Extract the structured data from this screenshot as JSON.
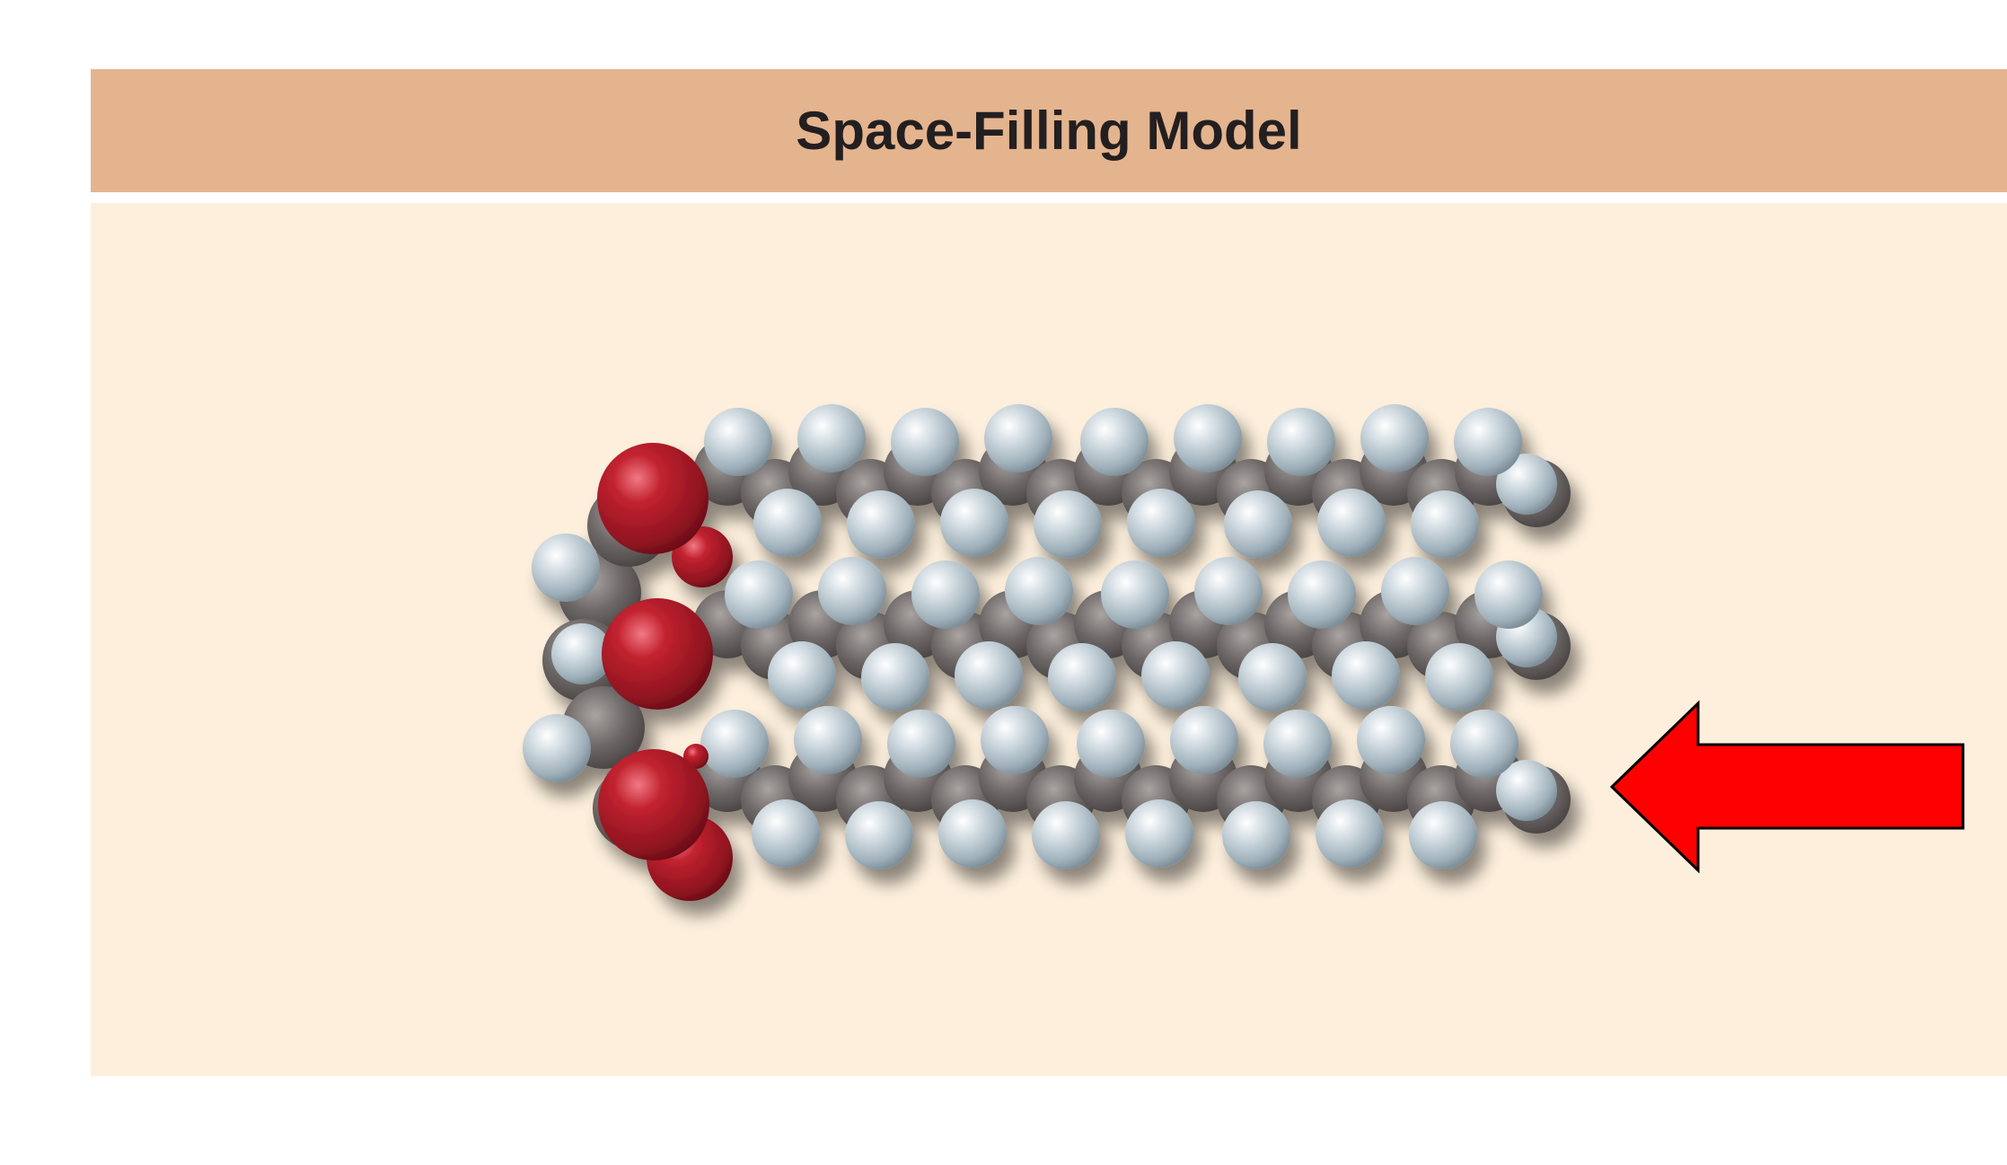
{
  "panel": {
    "title": "Space-Filling Model"
  },
  "model": {
    "molecule_icon": "triglyceride-space-filling-molecule",
    "atom_colors": {
      "oxygen": "#b5202e",
      "hydrogen": "#c9d5dc",
      "carbon": "#6f6a69"
    },
    "chain_count": 3
  },
  "pointer": {
    "icon": "left-arrow-icon",
    "fill_color": "#ff0000",
    "stroke_color": "#000000"
  }
}
